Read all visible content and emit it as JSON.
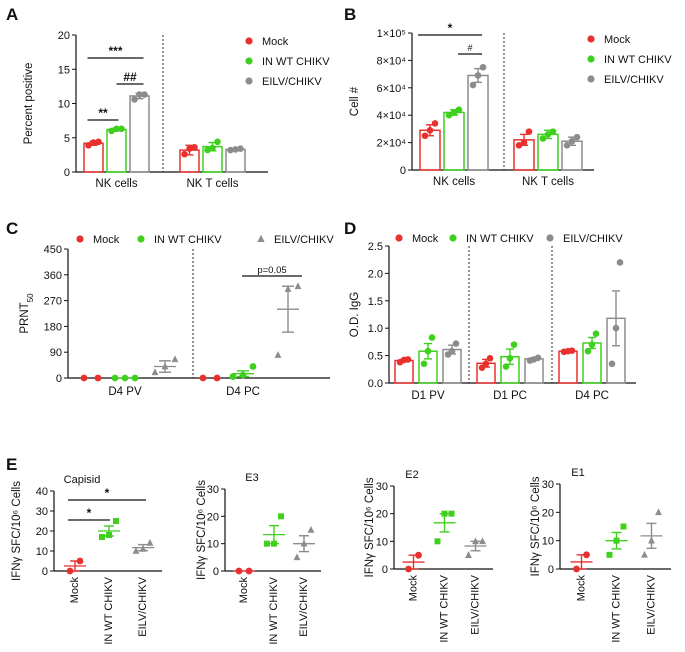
{
  "colors": {
    "mock": "#e8312f",
    "inwt": "#3fd01e",
    "eilv": "#8c8c8c",
    "axis": "#111111"
  },
  "panels": {
    "A": "A",
    "B": "B",
    "C": "C",
    "D": "D",
    "E": "E"
  },
  "chart_data": [
    {
      "id": "A",
      "type": "bar",
      "ylabel": "Percent positive",
      "ylim": [
        0,
        20
      ],
      "yticks": [
        "0",
        "5",
        "10",
        "15",
        "20"
      ],
      "categories": [
        "NK cells",
        "NK T cells"
      ],
      "legend": [
        "Mock",
        "IN WT CHIKV",
        "EILV/CHIKV"
      ],
      "series": [
        {
          "name": "Mock",
          "values": [
            4.2,
            3.2
          ],
          "errors": [
            0.3,
            0.7
          ],
          "points": [
            [
              3.9,
              4.3,
              4.4
            ],
            [
              2.6,
              3.4,
              3.6
            ]
          ]
        },
        {
          "name": "IN WT CHIKV",
          "values": [
            6.2,
            3.7
          ],
          "errors": [
            0.2,
            0.6
          ],
          "points": [
            [
              6.0,
              6.3,
              6.3
            ],
            [
              3.2,
              3.5,
              4.4
            ]
          ]
        },
        {
          "name": "EILV/CHIKV",
          "values": [
            11.1,
            3.3
          ],
          "errors": [
            0.4,
            0.1
          ],
          "points": [
            [
              10.6,
              11.3,
              11.3
            ],
            [
              3.2,
              3.3,
              3.4
            ]
          ]
        }
      ],
      "annotations": [
        "***",
        "**",
        "##"
      ]
    },
    {
      "id": "B",
      "type": "bar",
      "ylabel": "Cell #",
      "ylim": [
        0,
        100000
      ],
      "yticks": [
        "0",
        "2×10⁴",
        "4×10⁴",
        "6×10⁴",
        "8×10⁴",
        "1×10⁵"
      ],
      "categories": [
        "NK cells",
        "NK T cells"
      ],
      "legend": [
        "Mock",
        "IN WT CHIKV",
        "EILV/CHIKV"
      ],
      "series": [
        {
          "name": "Mock",
          "values": [
            29000,
            22000
          ],
          "errors": [
            4000,
            4000
          ],
          "points": [
            [
              25000,
              29000,
              34000
            ],
            [
              18000,
              20000,
              28000
            ]
          ]
        },
        {
          "name": "IN WT CHIKV",
          "values": [
            42000,
            26000
          ],
          "errors": [
            2000,
            3000
          ],
          "points": [
            [
              40000,
              42000,
              44000
            ],
            [
              23000,
              26000,
              28000
            ]
          ]
        },
        {
          "name": "EILV/CHIKV",
          "values": [
            69000,
            21000
          ],
          "errors": [
            5000,
            3000
          ],
          "points": [
            [
              62000,
              69000,
              75000
            ],
            [
              18000,
              21000,
              24000
            ]
          ]
        }
      ],
      "annotations": [
        "*",
        "#"
      ]
    },
    {
      "id": "C",
      "type": "scatter",
      "ylabel": "PRNT",
      "ylabel_sub": "50",
      "ylim": [
        0,
        450
      ],
      "yticks": [
        "0",
        "90",
        "180",
        "270",
        "360",
        "450"
      ],
      "categories": [
        "D4 PV",
        "D4 PC"
      ],
      "legend": [
        "Mock",
        "IN WT CHIKV",
        "EILV/CHIKV"
      ],
      "series": [
        {
          "name": "Mock",
          "mean": [
            0,
            0
          ],
          "sem": [
            0,
            0
          ],
          "points": [
            [
              0,
              0
            ],
            [
              0,
              0
            ]
          ]
        },
        {
          "name": "IN WT CHIKV",
          "mean": [
            0,
            15
          ],
          "sem": [
            0,
            10
          ],
          "points": [
            [
              0,
              0,
              0
            ],
            [
              5,
              10,
              40
            ]
          ]
        },
        {
          "name": "EILV/CHIKV",
          "mean": [
            40,
            240
          ],
          "sem": [
            20,
            80
          ],
          "points": [
            [
              20,
              40,
              65
            ],
            [
              80,
              310,
              320
            ]
          ]
        }
      ],
      "annotations": [
        "p=0.05"
      ]
    },
    {
      "id": "D",
      "type": "bar",
      "ylabel": "O.D. IgG",
      "ylim": [
        0,
        2.5
      ],
      "yticks": [
        "0.0",
        "0.5",
        "1.0",
        "1.5",
        "2.0",
        "2.5"
      ],
      "categories": [
        "D1 PV",
        "D1 PC",
        "D4 PC"
      ],
      "legend": [
        "Mock",
        "IN WT CHIKV",
        "EILV/CHIKV"
      ],
      "series": [
        {
          "name": "Mock",
          "values": [
            0.41,
            0.36,
            0.58
          ],
          "errors": [
            0.02,
            0.07,
            0.01
          ],
          "points": [
            [
              0.38,
              0.42,
              0.43
            ],
            [
              0.28,
              0.35,
              0.45
            ],
            [
              0.57,
              0.58,
              0.59
            ]
          ]
        },
        {
          "name": "IN WT CHIKV",
          "values": [
            0.58,
            0.48,
            0.73
          ],
          "errors": [
            0.14,
            0.14,
            0.1
          ],
          "points": [
            [
              0.35,
              0.58,
              0.83
            ],
            [
              0.3,
              0.45,
              0.7
            ],
            [
              0.58,
              0.7,
              0.9
            ]
          ]
        },
        {
          "name": "EILV/CHIKV",
          "values": [
            0.61,
            0.44,
            1.18
          ],
          "errors": [
            0.08,
            0.02,
            0.5
          ],
          "points": [
            [
              0.52,
              0.58,
              0.72
            ],
            [
              0.41,
              0.43,
              0.46
            ],
            [
              0.35,
              1.0,
              2.2
            ]
          ]
        }
      ]
    },
    {
      "id": "E1",
      "type": "scatter",
      "title": "Capisid",
      "ylabel": "IFNγ SFC/10⁶ Cells",
      "ylim": [
        0,
        40
      ],
      "yticks": [
        "0",
        "10",
        "20",
        "30",
        "40"
      ],
      "categories": [
        "Mock",
        "IN WT CHIKV",
        "EILV/CHIKV"
      ],
      "series": [
        {
          "name": "Mock",
          "mean": 2.5,
          "sem": 2.5,
          "points": [
            0,
            5
          ]
        },
        {
          "name": "IN WT CHIKV",
          "mean": 20,
          "sem": 2.5,
          "points": [
            17,
            18,
            25
          ]
        },
        {
          "name": "EILV/CHIKV",
          "mean": 11.7,
          "sem": 1.5,
          "points": [
            10,
            11,
            14
          ]
        }
      ],
      "annotations": [
        "*",
        "*"
      ]
    },
    {
      "id": "E2",
      "type": "scatter",
      "title": "E3",
      "ylabel": "IFNγ SFC/10⁶ Cells",
      "ylim": [
        0,
        30
      ],
      "yticks": [
        "0",
        "10",
        "20",
        "30"
      ],
      "categories": [
        "Mock",
        "IN WT CHIKV",
        "EILV/CHIKV"
      ],
      "series": [
        {
          "name": "Mock",
          "mean": 0,
          "sem": 0,
          "points": [
            0,
            0
          ]
        },
        {
          "name": "IN WT CHIKV",
          "mean": 13.3,
          "sem": 3.3,
          "points": [
            10,
            10,
            20
          ]
        },
        {
          "name": "EILV/CHIKV",
          "mean": 10,
          "sem": 2.9,
          "points": [
            5,
            10,
            15
          ]
        }
      ]
    },
    {
      "id": "E3",
      "type": "scatter",
      "title": "E2",
      "ylabel": "IFNγ SFC/10⁶ Cells",
      "ylim": [
        0,
        30
      ],
      "yticks": [
        "0",
        "10",
        "20",
        "30"
      ],
      "categories": [
        "Mock",
        "IN WT CHIKV",
        "EILV/CHIKV"
      ],
      "series": [
        {
          "name": "Mock",
          "mean": 2.5,
          "sem": 2.5,
          "points": [
            0,
            5
          ]
        },
        {
          "name": "IN WT CHIKV",
          "mean": 16.7,
          "sem": 3.3,
          "points": [
            10,
            20,
            20
          ]
        },
        {
          "name": "EILV/CHIKV",
          "mean": 8.3,
          "sem": 1.7,
          "points": [
            5,
            10,
            10
          ]
        }
      ]
    },
    {
      "id": "E4",
      "type": "scatter",
      "title": "E1",
      "ylabel": "IFNγ SFC/10⁶ Cells",
      "ylim": [
        0,
        30
      ],
      "yticks": [
        "0",
        "10",
        "20",
        "30"
      ],
      "categories": [
        "Mock",
        "IN WT CHIKV",
        "EILV/CHIKV"
      ],
      "series": [
        {
          "name": "Mock",
          "mean": 2.5,
          "sem": 2.5,
          "points": [
            0,
            5
          ]
        },
        {
          "name": "IN WT CHIKV",
          "mean": 10,
          "sem": 2.9,
          "points": [
            5,
            10,
            15
          ]
        },
        {
          "name": "EILV/CHIKV",
          "mean": 11.7,
          "sem": 4.4,
          "points": [
            5,
            10,
            20
          ]
        }
      ]
    }
  ]
}
